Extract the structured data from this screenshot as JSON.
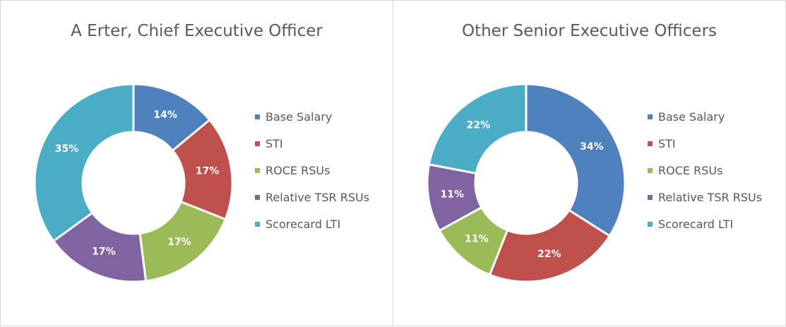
{
  "chart_data": [
    {
      "type": "pie",
      "donut": true,
      "title": "A Erter, Chief Executive Officer",
      "categories": [
        "Base Salary",
        "STI",
        "ROCE RSUs",
        "Relative TSR RSUs",
        "Scorecard LTI"
      ],
      "values": [
        14,
        17,
        17,
        17,
        35
      ],
      "data_labels": [
        "14%",
        "17%",
        "17%",
        "17%",
        "35%"
      ],
      "colors": [
        "#4F81BD",
        "#C0504D",
        "#9BBB59",
        "#8064A2",
        "#4BACC6"
      ],
      "legend_position": "right"
    },
    {
      "type": "pie",
      "donut": true,
      "title": "Other Senior Executive Officers",
      "categories": [
        "Base Salary",
        "STI",
        "ROCE RSUs",
        "Relative TSR RSUs",
        "Scorecard LTI"
      ],
      "values": [
        34,
        22,
        11,
        11,
        22
      ],
      "data_labels": [
        "34%",
        "22%",
        "11%",
        "11%",
        "22%"
      ],
      "colors": [
        "#4F81BD",
        "#C0504D",
        "#9BBB59",
        "#8064A2",
        "#4BACC6"
      ],
      "legend_position": "right"
    }
  ]
}
